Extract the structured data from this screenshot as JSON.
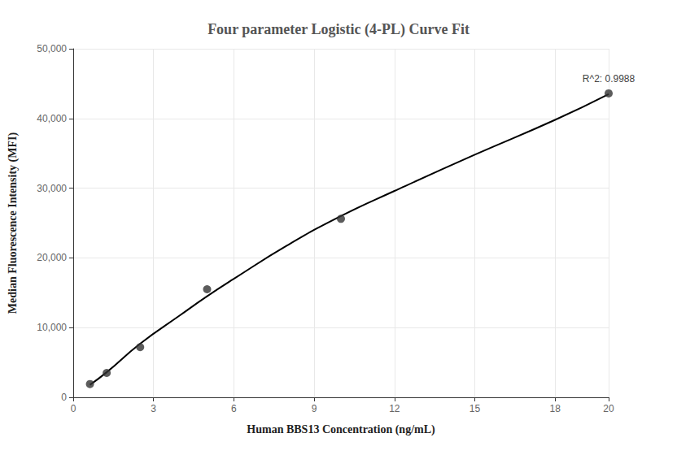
{
  "chart_data": {
    "type": "scatter",
    "title": "Four parameter Logistic (4-PL) Curve Fit",
    "x_label": "Human BBS13 Concentration (ng/mL)",
    "y_label": "Median Fluorescence Intensity (MFI)",
    "annotation": "R^2: 0.9988",
    "xlim": [
      0,
      20
    ],
    "xticks": [
      0,
      3,
      6,
      9,
      12,
      15,
      18,
      20
    ],
    "ylim": [
      0,
      50000
    ],
    "yticks": [
      0,
      {
        "value": 10000,
        "label": "10,000"
      },
      {
        "value": 20000,
        "label": "20,000"
      },
      {
        "value": 30000,
        "label": "30,000"
      },
      {
        "value": 40000,
        "label": "40,000"
      },
      {
        "value": 50000,
        "label": "50,000"
      }
    ],
    "grid": true,
    "series": [
      {
        "type": "scatter",
        "color": "#333333",
        "marker": "circle",
        "x": [
          0.625,
          1.25,
          2.5,
          5,
          10,
          20
        ],
        "values": [
          1900,
          3500,
          7200,
          15500,
          25600,
          43600
        ]
      },
      {
        "type": "line",
        "color": "#000000",
        "line_style": "solid",
        "x": [
          0.625,
          1.25,
          2.5,
          4,
          5,
          6,
          8,
          10,
          12,
          15,
          18,
          20
        ],
        "values": [
          1800,
          3600,
          7700,
          11800,
          14500,
          17000,
          21800,
          26000,
          29600,
          34800,
          39800,
          43500
        ]
      }
    ]
  }
}
